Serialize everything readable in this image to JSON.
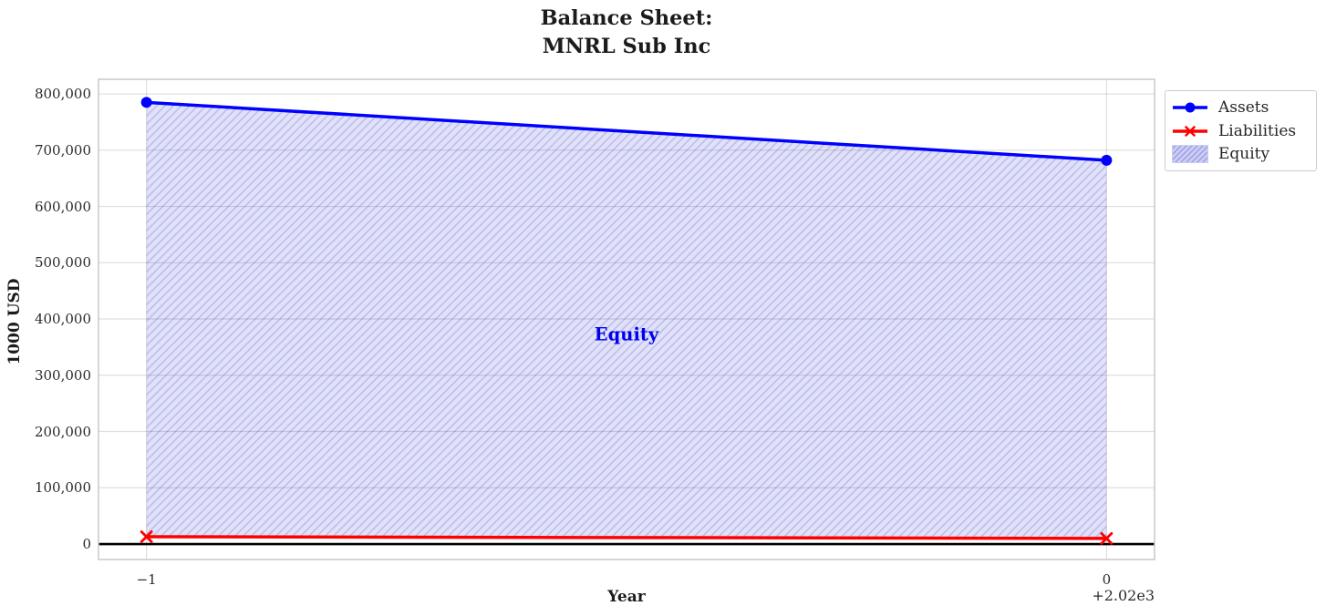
{
  "title": {
    "line1": "Balance Sheet:",
    "line2": "MNRL Sub Inc"
  },
  "chart_data": {
    "type": "line",
    "title": "Balance Sheet:\nMNRL Sub Inc",
    "xlabel": "Year",
    "ylabel": "1000 USD",
    "x": [
      2019,
      2020
    ],
    "xtick_labels": [
      "−1",
      "0"
    ],
    "x_offset_text": "+2.02e3",
    "yticks": [
      0,
      100000,
      200000,
      300000,
      400000,
      500000,
      600000,
      700000,
      800000
    ],
    "ytick_labels": [
      "0",
      "100,000",
      "200,000",
      "300,000",
      "400,000",
      "500,000",
      "600,000",
      "700,000",
      "800,000"
    ],
    "xlim": [
      2018.95,
      2020.05
    ],
    "ylim": [
      -27500,
      826000
    ],
    "grid": true,
    "series": [
      {
        "name": "Assets",
        "values": [
          785000,
          682000
        ],
        "color": "#0000ff",
        "marker": "circle",
        "linewidth": 3.5
      },
      {
        "name": "Liabilities",
        "values": [
          13000,
          10000
        ],
        "color": "#ff0000",
        "marker": "x",
        "linewidth": 3.5
      }
    ],
    "fill_between": {
      "name": "Equity",
      "label": "Equity",
      "lower_series": "Liabilities",
      "upper_series": "Assets",
      "hatch": "//",
      "facecolor": "#e1e2f9",
      "hatch_color": "#c0c1ec",
      "label_color": "#0000ee"
    },
    "axhline": {
      "y": 0,
      "color": "#000000"
    },
    "legend": {
      "position": "outside upper right",
      "entries": [
        "Assets",
        "Liabilities",
        "Equity"
      ]
    }
  },
  "style_colors": {
    "grid": "rgba(0,0,0,0.13)",
    "spine": "#c8c8c8",
    "legend_patch_face": "#cdcef4",
    "legend_patch_hatch": "#9b9ce4"
  }
}
